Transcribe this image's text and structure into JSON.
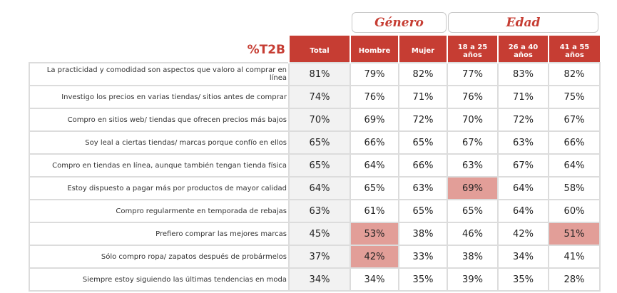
{
  "title": "%T2B",
  "groups": {
    "genero": "Género",
    "edad": "Edad"
  },
  "chart_data": {
    "type": "table",
    "title": "%T2B",
    "columns": [
      "Total",
      "Hombre",
      "Mujer",
      "18 a 25 años",
      "26 a 40 años",
      "41 a 55 años"
    ],
    "highlight_color": "#e29e98",
    "header_color": "#c63d33",
    "rows": [
      {
        "label": "La practicidad y comodidad son aspectos que valoro al comprar en línea",
        "values": [
          "81%",
          "79%",
          "82%",
          "77%",
          "83%",
          "82%"
        ],
        "highlight": []
      },
      {
        "label": "Investigo los precios en varias tiendas/ sitios antes de comprar",
        "values": [
          "74%",
          "76%",
          "71%",
          "76%",
          "71%",
          "75%"
        ],
        "highlight": []
      },
      {
        "label": "Compro en sitios web/ tiendas que ofrecen precios más bajos",
        "values": [
          "70%",
          "69%",
          "72%",
          "70%",
          "72%",
          "67%"
        ],
        "highlight": []
      },
      {
        "label": "Soy leal a ciertas tiendas/ marcas porque confío en ellos",
        "values": [
          "65%",
          "66%",
          "65%",
          "67%",
          "63%",
          "66%"
        ],
        "highlight": []
      },
      {
        "label": "Compro en tiendas en línea, aunque también tengan tienda física",
        "values": [
          "65%",
          "64%",
          "66%",
          "63%",
          "67%",
          "64%"
        ],
        "highlight": []
      },
      {
        "label": "Estoy dispuesto a pagar más por productos de mayor calidad",
        "values": [
          "64%",
          "65%",
          "63%",
          "69%",
          "64%",
          "58%"
        ],
        "highlight": [
          3
        ]
      },
      {
        "label": "Compro regularmente en temporada de rebajas",
        "values": [
          "63%",
          "61%",
          "65%",
          "65%",
          "64%",
          "60%"
        ],
        "highlight": []
      },
      {
        "label": "Prefiero comprar las mejores marcas",
        "values": [
          "45%",
          "53%",
          "38%",
          "46%",
          "42%",
          "51%"
        ],
        "highlight": [
          1,
          5
        ]
      },
      {
        "label": "Sólo compro ropa/ zapatos después de probármelos",
        "values": [
          "37%",
          "42%",
          "33%",
          "38%",
          "34%",
          "41%"
        ],
        "highlight": [
          1
        ]
      },
      {
        "label": "Siempre estoy siguiendo las últimas tendencias en moda",
        "values": [
          "34%",
          "34%",
          "35%",
          "39%",
          "35%",
          "28%"
        ],
        "highlight": []
      }
    ]
  }
}
